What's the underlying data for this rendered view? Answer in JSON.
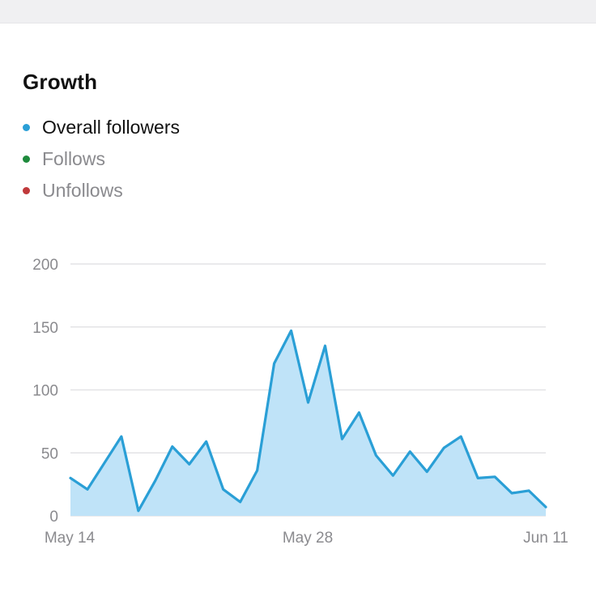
{
  "section": {
    "title": "Growth"
  },
  "legend": [
    {
      "label": "Overall followers",
      "color": "#2a9fd6",
      "active": true
    },
    {
      "label": "Follows",
      "color": "#1e8a3c",
      "active": false
    },
    {
      "label": "Unfollows",
      "color": "#c0393b",
      "active": false
    }
  ],
  "colors": {
    "line": "#2a9fd6",
    "area": "#bfe3f8",
    "grid": "#e3e3e6",
    "tick_text": "#8a8a8e"
  },
  "chart_data": {
    "type": "area",
    "x_tick_labels": [
      "May 14",
      "May 28",
      "Jun 11"
    ],
    "y_ticks": [
      0,
      50,
      100,
      150,
      200
    ],
    "ylim": [
      0,
      200
    ],
    "grid": true,
    "legend_position": "top-left",
    "series": [
      {
        "name": "Overall followers",
        "x": [
          "May 14",
          "May 15",
          "May 16",
          "May 17",
          "May 18",
          "May 19",
          "May 20",
          "May 21",
          "May 22",
          "May 23",
          "May 24",
          "May 25",
          "May 26",
          "May 27",
          "May 28",
          "May 29",
          "May 30",
          "May 31",
          "Jun 1",
          "Jun 2",
          "Jun 3",
          "Jun 4",
          "Jun 5",
          "Jun 6",
          "Jun 7",
          "Jun 8",
          "Jun 9",
          "Jun 10",
          "Jun 11"
        ],
        "values": [
          30,
          21,
          42,
          63,
          4,
          28,
          55,
          41,
          59,
          21,
          11,
          36,
          121,
          147,
          90,
          135,
          61,
          82,
          48,
          32,
          51,
          35,
          54,
          63,
          30,
          31,
          18,
          20,
          7
        ]
      }
    ]
  }
}
